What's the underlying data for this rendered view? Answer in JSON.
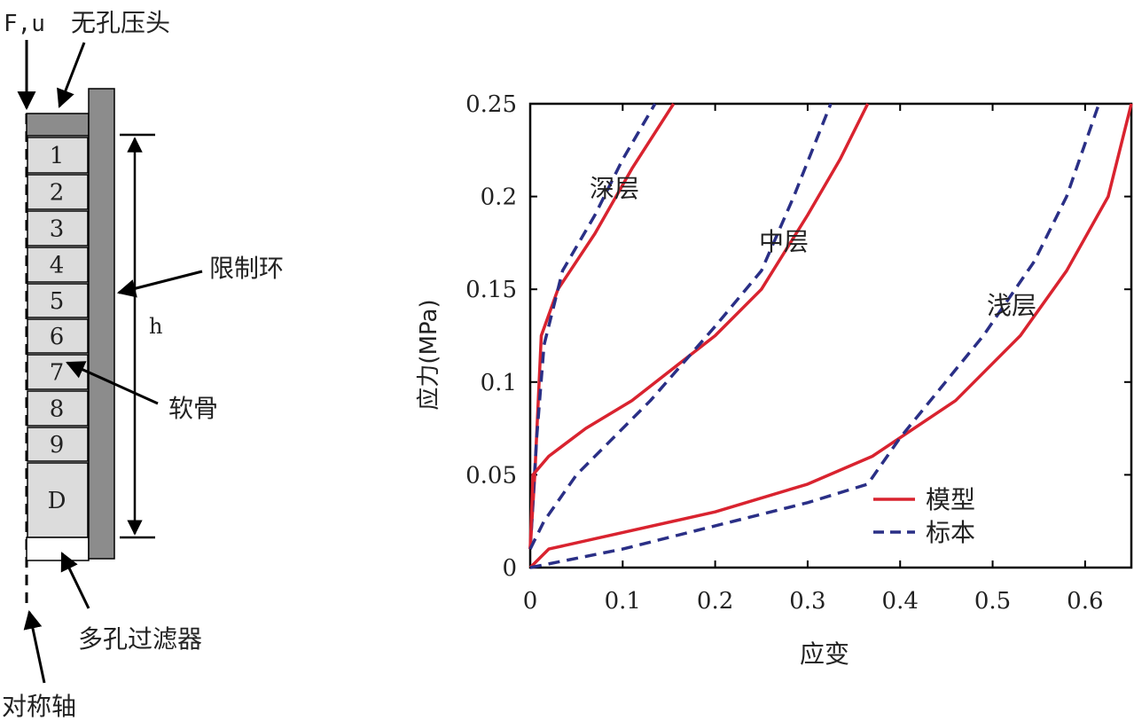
{
  "diagram": {
    "force_label": "F,u",
    "indenter_label": "无孔压头",
    "ring_label": "限制环",
    "height_label": "h",
    "cartilage_label": "软骨",
    "filter_label": "多孔过滤器",
    "axis_label": "对称轴",
    "layers": [
      "1",
      "2",
      "3",
      "4",
      "5",
      "6",
      "7",
      "8",
      "9",
      "D"
    ]
  },
  "chart_data": {
    "type": "line",
    "xlabel": "应变",
    "ylabel": "应力(MPa)",
    "xlim": [
      0,
      0.65
    ],
    "ylim": [
      0,
      0.25
    ],
    "xticks": [
      "0",
      "0.1",
      "0.2",
      "0.3",
      "0.4",
      "0.5",
      "0.6"
    ],
    "yticks": [
      "0",
      "0.05",
      "0.1",
      "0.15",
      "0.2",
      "0.25"
    ],
    "legend": {
      "placement": "bottom-right",
      "entries": [
        "模型",
        "标本"
      ]
    },
    "colors": {
      "model": "#d9232f",
      "specimen": "#2a2f86"
    },
    "annotations": [
      "深层",
      "中层",
      "浅层"
    ],
    "series": [
      {
        "name": "模型",
        "group": "深层",
        "style": "solid",
        "points": [
          [
            0,
            0.01
          ],
          [
            0.005,
            0.05
          ],
          [
            0.012,
            0.125
          ],
          [
            0.03,
            0.15
          ],
          [
            0.07,
            0.18
          ],
          [
            0.11,
            0.215
          ],
          [
            0.155,
            0.25
          ]
        ]
      },
      {
        "name": "标本",
        "group": "深层",
        "style": "dashed",
        "points": [
          [
            0,
            0.01
          ],
          [
            0.007,
            0.07
          ],
          [
            0.015,
            0.12
          ],
          [
            0.035,
            0.16
          ],
          [
            0.07,
            0.19
          ],
          [
            0.1,
            0.22
          ],
          [
            0.135,
            0.25
          ]
        ]
      },
      {
        "name": "模型",
        "group": "中层",
        "style": "solid",
        "points": [
          [
            0,
            0.01
          ],
          [
            0.003,
            0.05
          ],
          [
            0.02,
            0.06
          ],
          [
            0.06,
            0.075
          ],
          [
            0.11,
            0.09
          ],
          [
            0.2,
            0.125
          ],
          [
            0.25,
            0.15
          ],
          [
            0.3,
            0.19
          ],
          [
            0.335,
            0.22
          ],
          [
            0.365,
            0.25
          ]
        ]
      },
      {
        "name": "标本",
        "group": "中层",
        "style": "dashed",
        "points": [
          [
            0,
            0.01
          ],
          [
            0.015,
            0.025
          ],
          [
            0.05,
            0.05
          ],
          [
            0.13,
            0.09
          ],
          [
            0.2,
            0.13
          ],
          [
            0.25,
            0.16
          ],
          [
            0.285,
            0.2
          ],
          [
            0.325,
            0.25
          ]
        ]
      },
      {
        "name": "模型",
        "group": "浅层",
        "style": "solid",
        "points": [
          [
            0,
            0
          ],
          [
            0.02,
            0.01
          ],
          [
            0.2,
            0.03
          ],
          [
            0.3,
            0.045
          ],
          [
            0.37,
            0.06
          ],
          [
            0.46,
            0.09
          ],
          [
            0.53,
            0.125
          ],
          [
            0.58,
            0.16
          ],
          [
            0.625,
            0.2
          ],
          [
            0.65,
            0.25
          ]
        ]
      },
      {
        "name": "标本",
        "group": "浅层",
        "style": "dashed",
        "points": [
          [
            0,
            0
          ],
          [
            0.1,
            0.01
          ],
          [
            0.3,
            0.035
          ],
          [
            0.365,
            0.045
          ],
          [
            0.4,
            0.07
          ],
          [
            0.49,
            0.125
          ],
          [
            0.545,
            0.165
          ],
          [
            0.58,
            0.2
          ],
          [
            0.615,
            0.25
          ]
        ]
      }
    ]
  }
}
